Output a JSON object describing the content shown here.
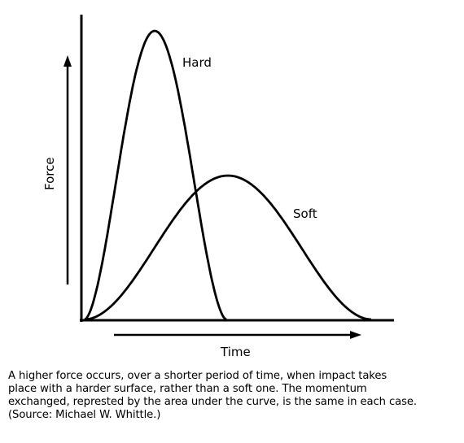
{
  "diagram": {
    "y_axis_label": "Force",
    "x_axis_label": "Time",
    "curves": [
      {
        "name": "Hard",
        "description": "tall narrow force peak"
      },
      {
        "name": "Soft",
        "description": "low wide force peak"
      }
    ]
  },
  "caption": {
    "lines": [
      "A higher force occurs, over a shorter period of time, when impact takes",
      "place with a harder surface, rather than a soft one.  The momentum",
      "exchanged, represted by the area under the curve, is the same in each case.",
      "(Source:  Michael W. Whittle.)"
    ]
  }
}
